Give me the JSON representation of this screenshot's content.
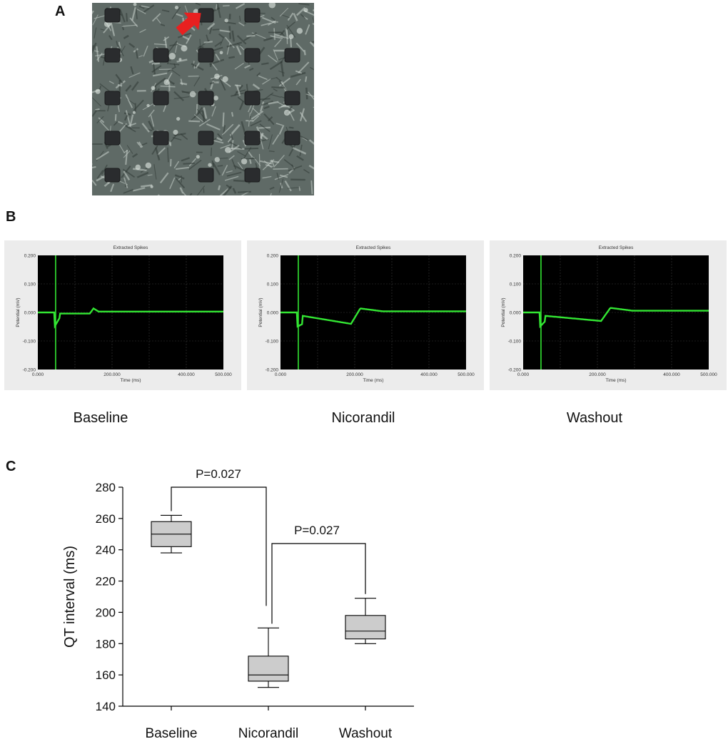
{
  "panels": {
    "a_label": "A",
    "b_label": "B",
    "c_label": "C"
  },
  "traces": [
    {
      "title": "Extracted Spikes",
      "ylabel": "Potential (mV)",
      "xlabel": "Time (ms)",
      "yticks": [
        "0.200",
        "0.100",
        "0.000",
        "-0.100",
        "-0.200"
      ],
      "xticks": [
        "0.000",
        "200.000",
        "400.000",
        "500.000"
      ],
      "caption": "Baseline"
    },
    {
      "title": "Extracted Spikes",
      "ylabel": "Potential (mV)",
      "xlabel": "Time (ms)",
      "yticks": [
        "0.200",
        "0.100",
        "0.000",
        "-0.100",
        "-0.200"
      ],
      "xticks": [
        "0.000",
        "200.000",
        "400.000",
        "500.000"
      ],
      "caption": "Nicorandil"
    },
    {
      "title": "Extracted Spikes",
      "ylabel": "Potential (mV)",
      "xlabel": "Time (ms)",
      "yticks": [
        "0.200",
        "0.100",
        "0.000",
        "-0.100",
        "-0.200"
      ],
      "xticks": [
        "0.000",
        "200.000",
        "400.000",
        "500.000"
      ],
      "caption": "Washout"
    }
  ],
  "colors": {
    "trace": "#33e633",
    "box_fill": "#cccccc",
    "arrow": "#e82020"
  },
  "chart_data": {
    "type": "box",
    "ylabel": "QT interval (ms)",
    "ylim": [
      140,
      280
    ],
    "yticks": [
      140,
      160,
      180,
      200,
      220,
      240,
      260,
      280
    ],
    "categories": [
      "Baseline",
      "Nicorandil",
      "Washout"
    ],
    "boxes": [
      {
        "name": "Baseline",
        "min": 238,
        "q1": 242,
        "median": 250,
        "q3": 258,
        "max": 262
      },
      {
        "name": "Nicorandil",
        "min": 152,
        "q1": 156,
        "median": 160,
        "q3": 172,
        "max": 190
      },
      {
        "name": "Washout",
        "min": 180,
        "q1": 183,
        "median": 188,
        "q3": 198,
        "max": 209
      }
    ],
    "annotations": [
      {
        "text": "P=0.027",
        "from": "Baseline",
        "to": "Nicorandil"
      },
      {
        "text": "P=0.027",
        "from": "Nicorandil",
        "to": "Washout"
      }
    ]
  }
}
